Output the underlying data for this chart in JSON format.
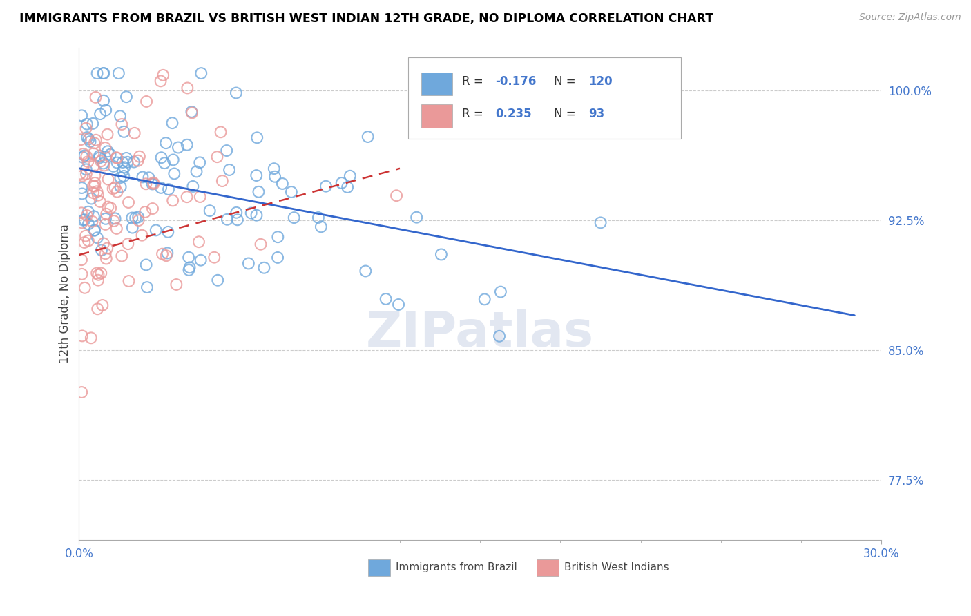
{
  "title": "IMMIGRANTS FROM BRAZIL VS BRITISH WEST INDIAN 12TH GRADE, NO DIPLOMA CORRELATION CHART",
  "source": "Source: ZipAtlas.com",
  "ylabel": "12th Grade, No Diploma",
  "yticks": [
    77.5,
    85.0,
    92.5,
    100.0
  ],
  "ytick_labels": [
    "77.5%",
    "85.0%",
    "92.5%",
    "100.0%"
  ],
  "xlim": [
    0.0,
    30.0
  ],
  "ylim": [
    74.0,
    102.5
  ],
  "blue_R": -0.176,
  "blue_N": 120,
  "pink_R": 0.235,
  "pink_N": 93,
  "blue_color": "#6fa8dc",
  "pink_color": "#ea9999",
  "blue_line_color": "#3366cc",
  "pink_line_color": "#cc3333",
  "legend_brazil": "Immigrants from Brazil",
  "legend_bwi": "British West Indians",
  "background_color": "#ffffff",
  "grid_color": "#cccccc",
  "title_color": "#000000",
  "source_color": "#999999",
  "label_color": "#4477cc",
  "seed_blue": 42,
  "seed_pink": 77,
  "blue_trend_x": [
    0.0,
    29.0
  ],
  "blue_trend_y": [
    95.5,
    87.0
  ],
  "pink_trend_x": [
    0.0,
    12.0
  ],
  "pink_trend_y": [
    90.5,
    95.5
  ]
}
